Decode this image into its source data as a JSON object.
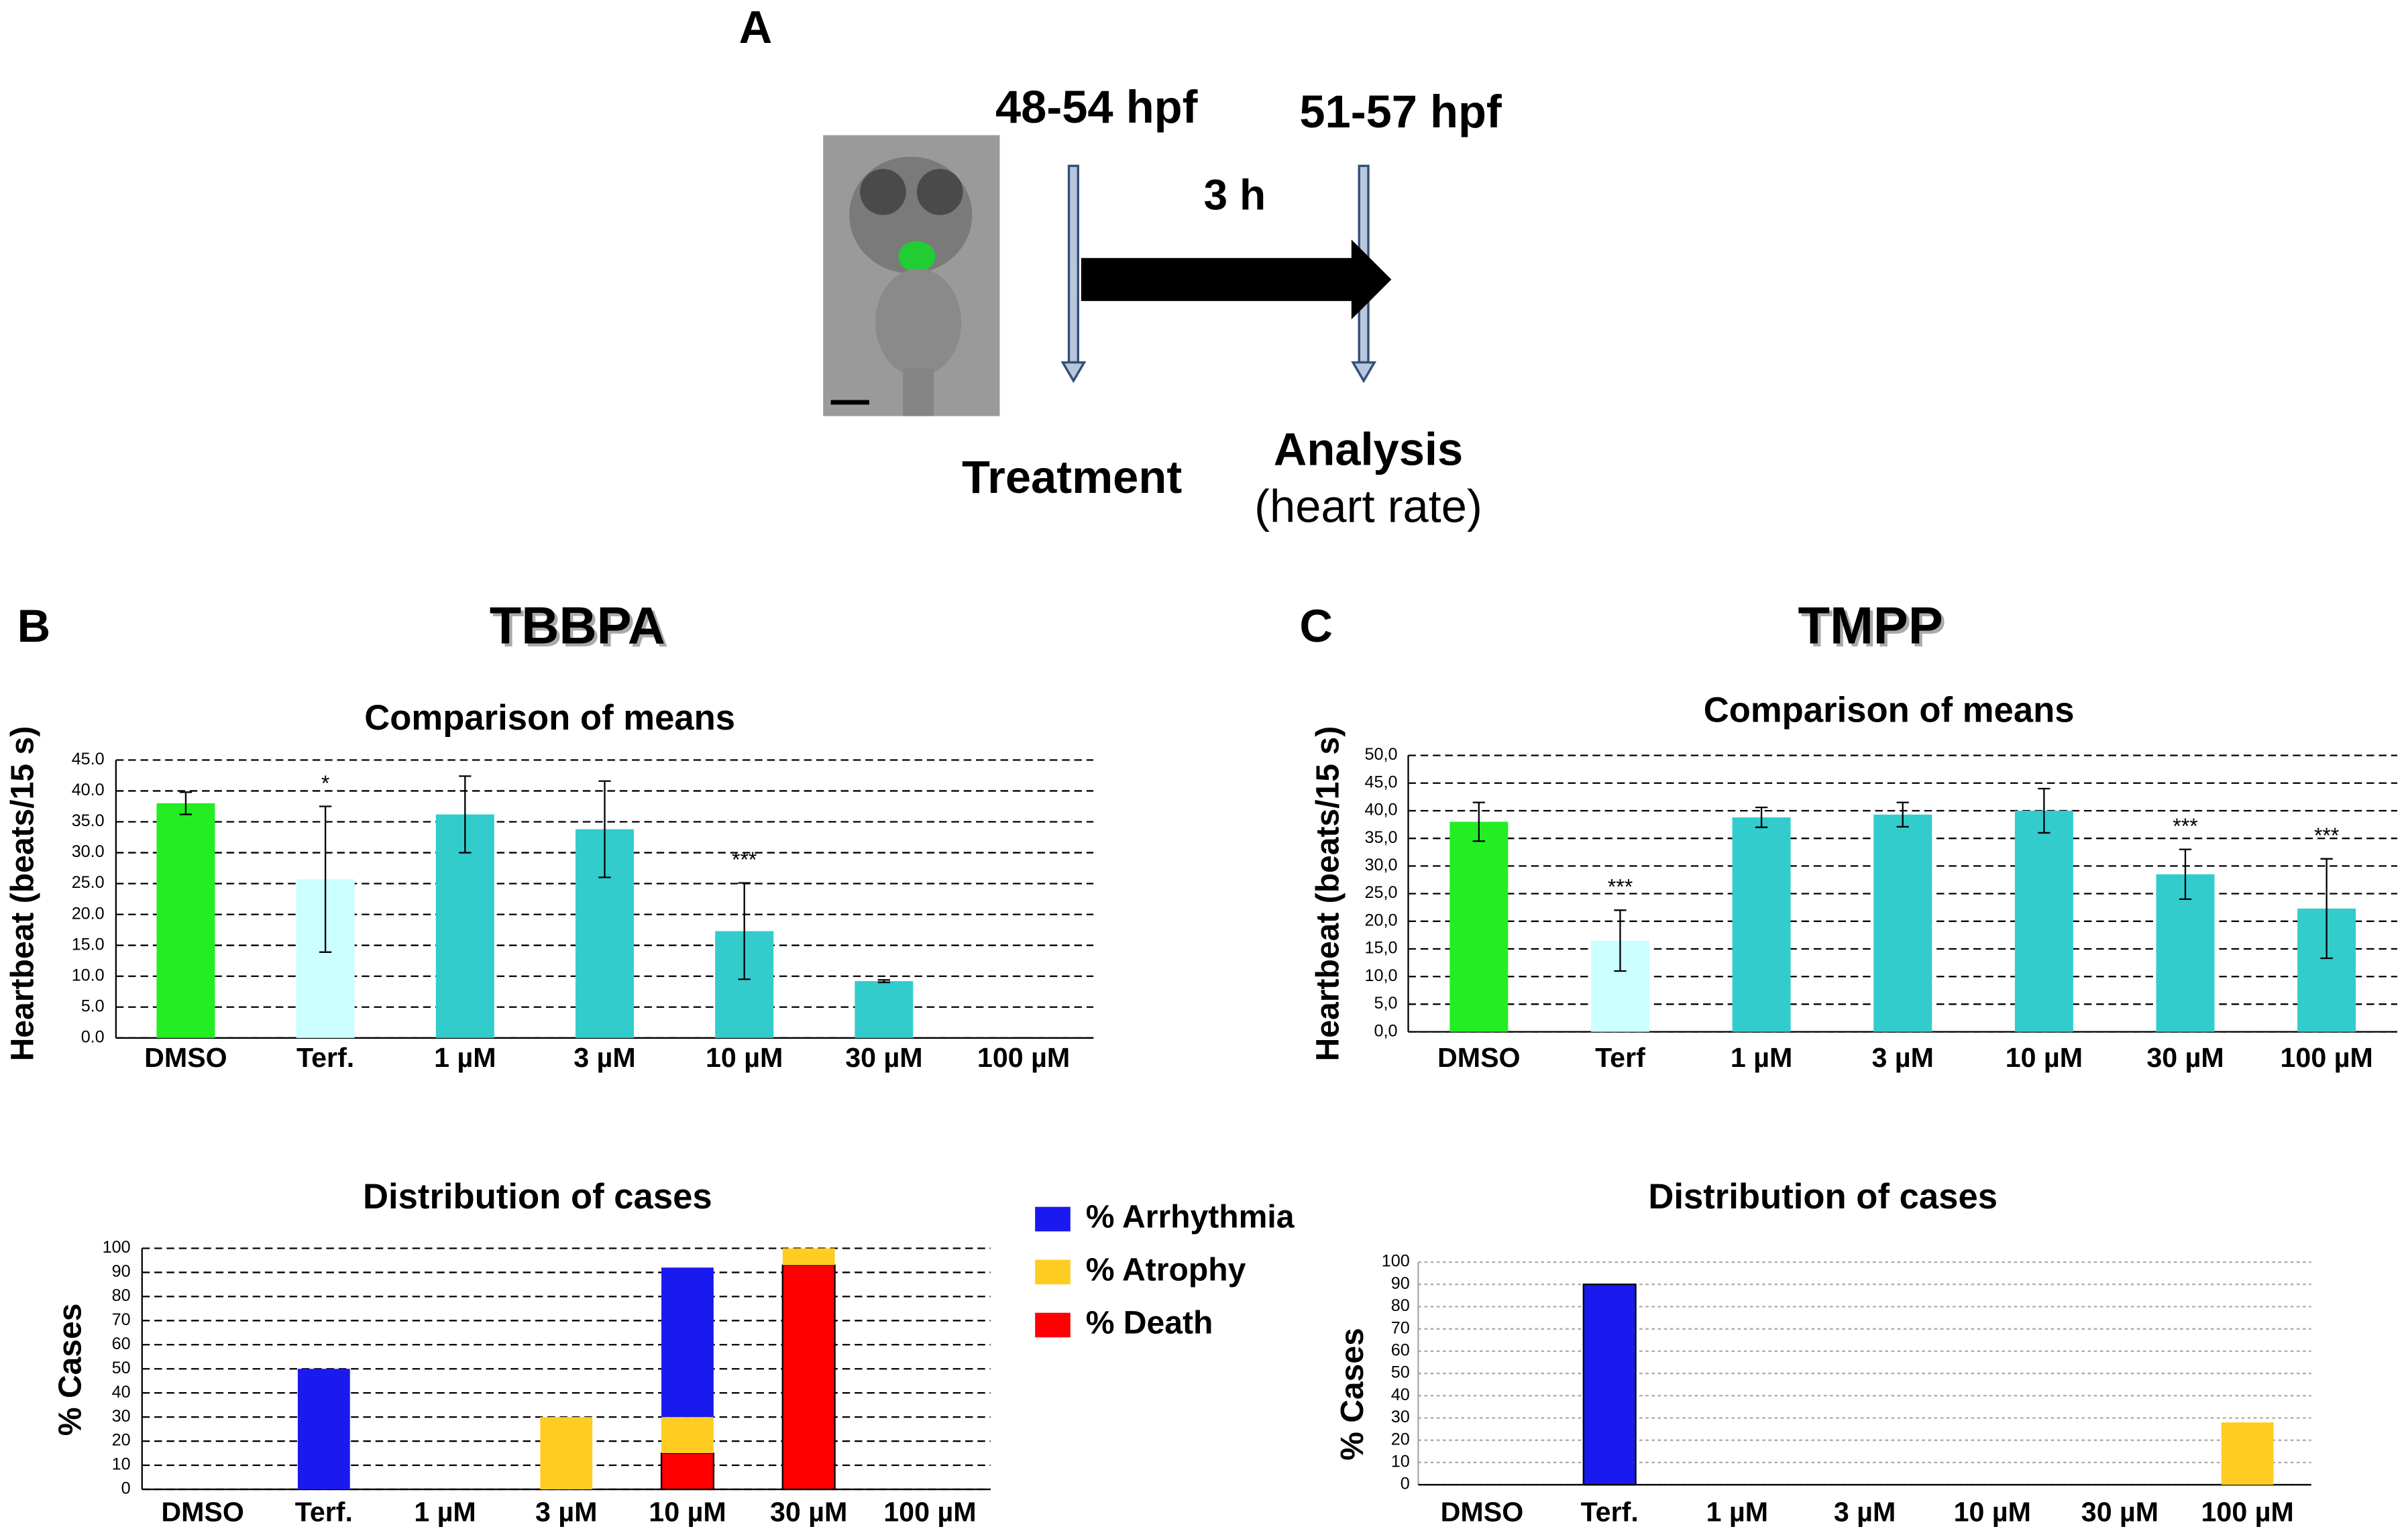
{
  "panel_labels": [
    "A",
    "B",
    "C"
  ],
  "panel_titles": [
    "TBBPA",
    "TMPP"
  ],
  "timeline": {
    "start": "48-54 hpf",
    "end": "51-57 hpf",
    "duration": "3 h",
    "treatment": "Treatment",
    "analysis": "Analysis",
    "analysis_detail": "(heart rate)"
  },
  "chart_data": [
    {
      "type": "bar",
      "title": "Comparison of means",
      "y_label": "Heartbeat (beats/15 s)",
      "categories": [
        "DMSO",
        "Terf.",
        "1 µM",
        "3 µM",
        "10 µM",
        "30 µM",
        "100 µM"
      ],
      "values": [
        38,
        25.7,
        36.2,
        33.8,
        17.3,
        9.2,
        0
      ],
      "errors": [
        1.8,
        11.8,
        6.2,
        7.8,
        7.8,
        0.2,
        0
      ],
      "colors": [
        "#22ee22",
        "#ccffff",
        "#33cccc",
        "#33cccc",
        "#33cccc",
        "#33cccc",
        "#33cccc"
      ],
      "ylim": [
        0,
        45
      ],
      "yticks": [
        {
          "value": 0,
          "label": "0.0"
        },
        {
          "value": 5,
          "label": "5.0"
        },
        {
          "value": 10,
          "label": "10.0"
        },
        {
          "value": 15,
          "label": "15.0"
        },
        {
          "value": 20,
          "label": "20.0"
        },
        {
          "value": 25,
          "label": "25.0"
        },
        {
          "value": 30,
          "label": "30.0"
        },
        {
          "value": 35,
          "label": "35.0"
        },
        {
          "value": 40,
          "label": "40.0"
        },
        {
          "value": 45,
          "label": "45.0"
        }
      ],
      "grid": true,
      "annotations": [
        {
          "text": "*",
          "category": "Terf."
        },
        {
          "text": "***",
          "category": "10 µM"
        }
      ]
    },
    {
      "type": "bar",
      "title": "Comparison of means",
      "y_label": "Heartbeat (beats/15 s)",
      "categories": [
        "DMSO",
        "Terf",
        "1 µM",
        "3 µM",
        "10 µM",
        "30 µM",
        "100 µM"
      ],
      "values": [
        38,
        16.5,
        38.8,
        39.3,
        40,
        28.5,
        22.3
      ],
      "errors": [
        3.5,
        5.5,
        1.8,
        2.2,
        4,
        4.5,
        9
      ],
      "colors": [
        "#22ee22",
        "#ccffff",
        "#33cccc",
        "#33cccc",
        "#33cccc",
        "#33cccc",
        "#33cccc"
      ],
      "ylim": [
        0,
        50
      ],
      "yticks": [
        {
          "value": 0,
          "label": "0,0"
        },
        {
          "value": 5,
          "label": "5,0"
        },
        {
          "value": 10,
          "label": "10,0"
        },
        {
          "value": 15,
          "label": "15,0"
        },
        {
          "value": 20,
          "label": "20,0"
        },
        {
          "value": 25,
          "label": "25,0"
        },
        {
          "value": 30,
          "label": "30,0"
        },
        {
          "value": 35,
          "label": "35,0"
        },
        {
          "value": 40,
          "label": "40,0"
        },
        {
          "value": 45,
          "label": "45,0"
        },
        {
          "value": 50,
          "label": "50,0"
        }
      ],
      "grid": true,
      "annotations": [
        {
          "text": "***",
          "category": "Terf"
        },
        {
          "text": "***",
          "category": "30 µM"
        },
        {
          "text": "***",
          "category": "100 µM"
        }
      ]
    },
    {
      "type": "stacked_bar",
      "title": "Distribution of cases",
      "y_label": "% Cases",
      "categories": [
        "DMSO",
        "Terf.",
        "1 µM",
        "3 µM",
        "10 µM",
        "30 µM",
        "100 µM"
      ],
      "series": [
        {
          "name": "% Death",
          "color": "#ff0000",
          "values": [
            0,
            0,
            0,
            0,
            15,
            93,
            0
          ]
        },
        {
          "name": "% Atrophy",
          "color": "#ffcc22",
          "values": [
            0,
            0,
            0,
            30,
            15,
            7,
            0
          ]
        },
        {
          "name": "% Arrhythmia",
          "color": "#1a1aee",
          "values": [
            0,
            50,
            0,
            0,
            62,
            0,
            0
          ]
        }
      ],
      "ylim": [
        0,
        100
      ],
      "yticks": [
        0,
        10,
        20,
        30,
        40,
        50,
        60,
        70,
        80,
        90,
        100
      ],
      "grid": true,
      "legend": "right"
    },
    {
      "type": "stacked_bar",
      "title": "Distribution of cases",
      "y_label": "% Cases",
      "categories": [
        "DMSO",
        "Terf.",
        "1 µM",
        "3 µM",
        "10 µM",
        "30 µM",
        "100 µM"
      ],
      "series": [
        {
          "color": "#1a1aee",
          "values": [
            0,
            90,
            0,
            0,
            0,
            0,
            0
          ]
        },
        {
          "color": "#ffcc22",
          "values": [
            0,
            0,
            0,
            0,
            0,
            0,
            28
          ]
        }
      ],
      "ylim": [
        0,
        100
      ],
      "yticks": [
        0,
        10,
        20,
        30,
        40,
        50,
        60,
        70,
        80,
        90,
        100
      ],
      "grid": true
    }
  ]
}
